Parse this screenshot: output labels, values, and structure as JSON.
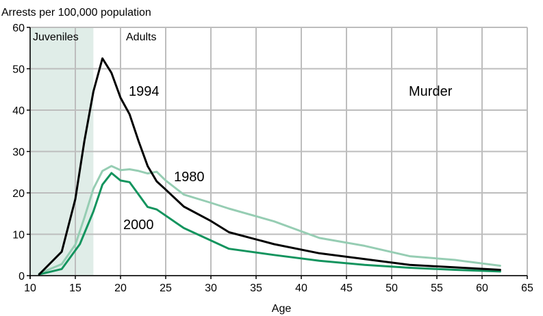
{
  "chart_data": {
    "type": "line",
    "title": "",
    "ylabel": "Arrests per 100,000 population",
    "xlabel": "Age",
    "xlim": [
      10,
      65
    ],
    "ylim": [
      0,
      60
    ],
    "x_ticks": [
      "10",
      "15",
      "20",
      "25",
      "30",
      "35",
      "40",
      "45",
      "50",
      "55",
      "60",
      "65"
    ],
    "y_ticks": [
      "0",
      "10",
      "20",
      "30",
      "40",
      "50",
      "60"
    ],
    "grid": true,
    "shaded_region": {
      "label": "Juveniles",
      "x_range": [
        10,
        17
      ],
      "color": "#e0ede8"
    },
    "region_labels": [
      "Juveniles",
      "Adults"
    ],
    "annotation": "Murder",
    "series": [
      {
        "name": "1994",
        "color": "#000000",
        "points": [
          [
            11,
            0.3
          ],
          [
            13.5,
            5.8
          ],
          [
            15,
            18.5
          ],
          [
            16,
            32.5
          ],
          [
            17,
            44.5
          ],
          [
            18,
            52.5
          ],
          [
            19,
            49
          ],
          [
            20,
            43
          ],
          [
            21,
            39
          ],
          [
            22,
            32.5
          ],
          [
            23,
            26.5
          ],
          [
            24,
            22.8
          ],
          [
            25,
            20.8
          ],
          [
            27,
            16.7
          ],
          [
            30,
            13.2
          ],
          [
            32,
            10.5
          ],
          [
            37,
            7.6
          ],
          [
            42,
            5.4
          ],
          [
            47,
            4.0
          ],
          [
            52,
            2.6
          ],
          [
            57,
            2.0
          ],
          [
            62,
            1.4
          ]
        ]
      },
      {
        "name": "1980",
        "color": "#96cdb3",
        "points": [
          [
            11,
            0.5
          ],
          [
            13.5,
            2.8
          ],
          [
            15,
            7.5
          ],
          [
            16,
            14
          ],
          [
            17,
            21
          ],
          [
            18,
            25.3
          ],
          [
            19,
            26.5
          ],
          [
            20,
            25.5
          ],
          [
            21,
            25.7
          ],
          [
            22,
            25.3
          ],
          [
            23,
            24.7
          ],
          [
            24,
            25.1
          ],
          [
            25,
            23
          ],
          [
            27,
            19.6
          ],
          [
            30,
            17.6
          ],
          [
            32,
            16.2
          ],
          [
            37,
            13.1
          ],
          [
            42,
            9.1
          ],
          [
            47,
            7.2
          ],
          [
            52,
            4.7
          ],
          [
            57,
            3.8
          ],
          [
            58,
            3.5
          ],
          [
            62,
            2.4
          ]
        ]
      },
      {
        "name": "2000",
        "color": "#13945e",
        "points": [
          [
            11,
            0.3
          ],
          [
            13.5,
            1.6
          ],
          [
            15.5,
            7.6
          ],
          [
            17,
            15.5
          ],
          [
            18,
            22.0
          ],
          [
            19,
            24.8
          ],
          [
            20,
            23.0
          ],
          [
            21,
            22.6
          ],
          [
            22,
            19.6
          ],
          [
            23,
            16.6
          ],
          [
            24,
            16.0
          ],
          [
            27,
            11.5
          ],
          [
            32,
            6.5
          ],
          [
            37,
            5.0
          ],
          [
            42,
            3.6
          ],
          [
            47,
            2.6
          ],
          [
            52,
            1.9
          ],
          [
            57,
            1.4
          ],
          [
            62,
            1.0
          ]
        ]
      }
    ]
  }
}
